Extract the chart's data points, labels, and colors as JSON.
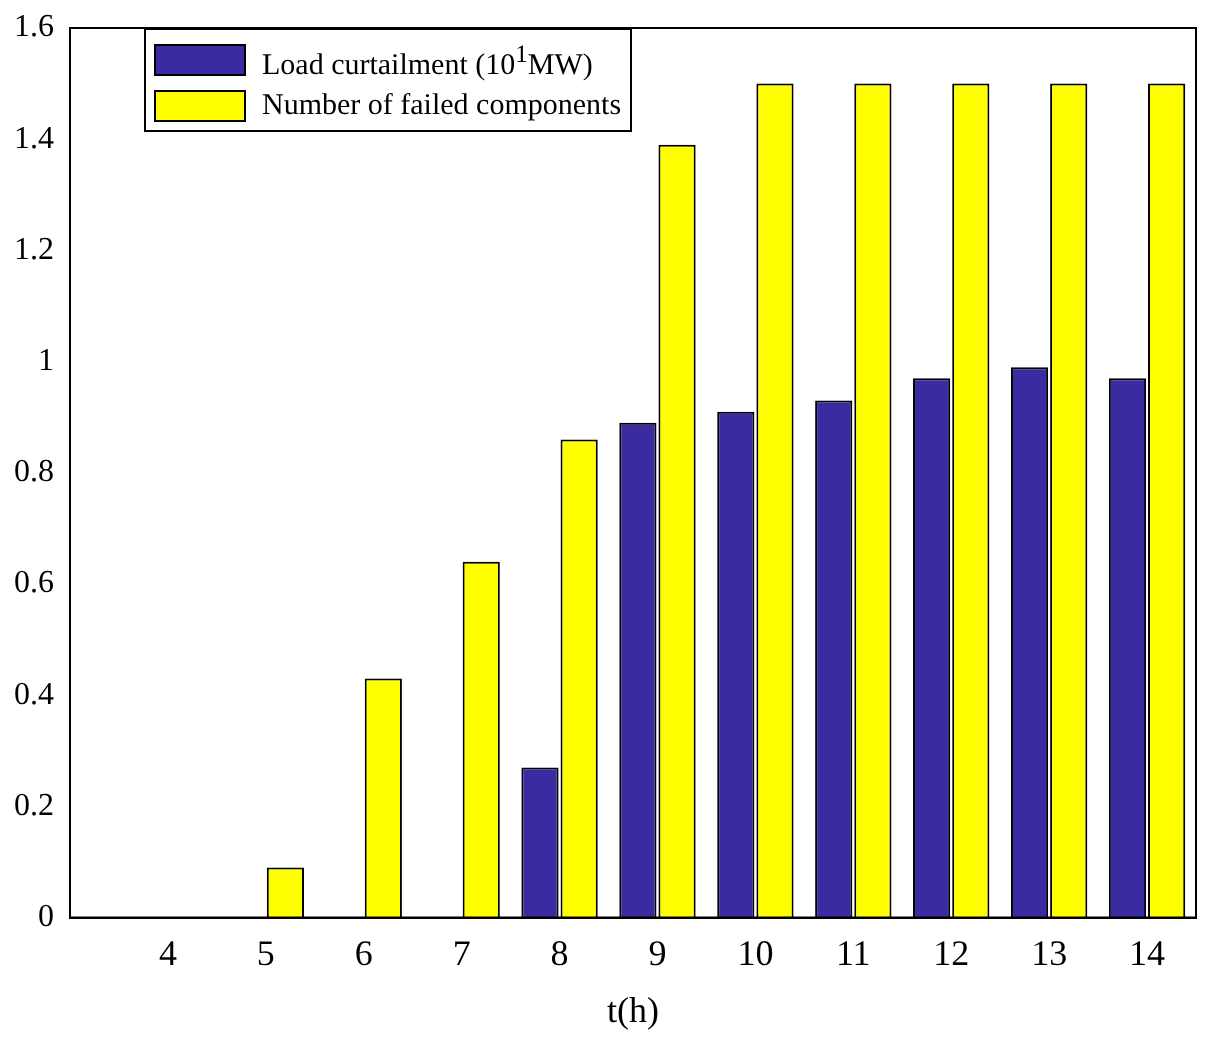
{
  "chart_data": {
    "type": "bar",
    "xlabel": "t(h)",
    "x": [
      4,
      5,
      6,
      7,
      8,
      9,
      10,
      11,
      12,
      13,
      14
    ],
    "xlim": [
      3,
      14.5
    ],
    "xticks": [
      4,
      5,
      6,
      7,
      8,
      9,
      10,
      11,
      12,
      13,
      14
    ],
    "ylim": [
      0,
      1.6
    ],
    "yticks": [
      0,
      0.2,
      0.4,
      0.6,
      0.8,
      1,
      1.2,
      1.4,
      1.6
    ],
    "legend": "top left",
    "grid": false,
    "series": [
      {
        "name": "Load curtailment (10$^{1}$MW)",
        "color": "#3a2ca0",
        "values": [
          0,
          0,
          0,
          0,
          0.27,
          0.89,
          0.91,
          0.93,
          0.97,
          0.99,
          0.97
        ]
      },
      {
        "name": "Number of failed components",
        "color": "#ffff00",
        "values": [
          0,
          0.09,
          0.43,
          0.64,
          0.86,
          1.39,
          1.5,
          1.5,
          1.5,
          1.5,
          1.5
        ]
      }
    ]
  }
}
